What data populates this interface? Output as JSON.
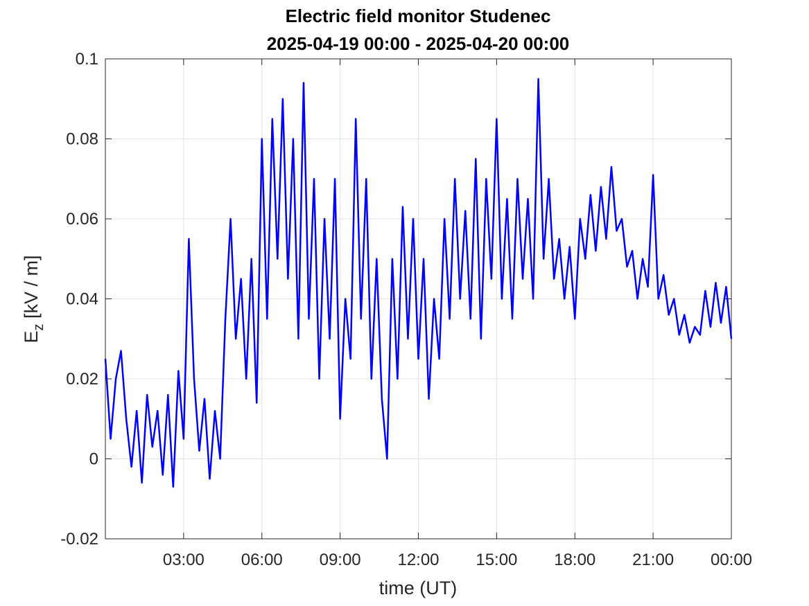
{
  "chart_data": {
    "type": "line",
    "title": "Electric field monitor Studenec",
    "subtitle": "2025-04-19 00:00 - 2025-04-20 00:00",
    "xlabel": "time (UT)",
    "ylabel": {
      "main": "E",
      "subscript": "z",
      "suffix": " [kV / m]"
    },
    "x": [
      0,
      0.2,
      0.4,
      0.6,
      0.8,
      1,
      1.2,
      1.4,
      1.6,
      1.8,
      2,
      2.2,
      2.4,
      2.6,
      2.8,
      3,
      3.2,
      3.4,
      3.6,
      3.8,
      4,
      4.2,
      4.4,
      4.6,
      4.8,
      5,
      5.2,
      5.4,
      5.6,
      5.8,
      6,
      6.2,
      6.4,
      6.6,
      6.8,
      7,
      7.2,
      7.4,
      7.6,
      7.8,
      8,
      8.2,
      8.4,
      8.6,
      8.8,
      9,
      9.2,
      9.4,
      9.6,
      9.8,
      10,
      10.2,
      10.4,
      10.6,
      10.8,
      11,
      11.2,
      11.4,
      11.6,
      11.8,
      12,
      12.2,
      12.4,
      12.6,
      12.8,
      13,
      13.2,
      13.4,
      13.6,
      13.8,
      14,
      14.2,
      14.4,
      14.6,
      14.8,
      15,
      15.2,
      15.4,
      15.6,
      15.8,
      16,
      16.2,
      16.4,
      16.6,
      16.8,
      17,
      17.2,
      17.4,
      17.6,
      17.8,
      18,
      18.2,
      18.4,
      18.6,
      18.8,
      19,
      19.2,
      19.4,
      19.6,
      19.8,
      20,
      20.2,
      20.4,
      20.6,
      20.8,
      21,
      21.2,
      21.4,
      21.6,
      21.8,
      22,
      22.2,
      22.4,
      22.6,
      22.8,
      23,
      23.2,
      23.4,
      23.6,
      23.8,
      24
    ],
    "values": [
      0.025,
      0.005,
      0.02,
      0.027,
      0.01,
      -0.002,
      0.012,
      -0.006,
      0.016,
      0.003,
      0.012,
      -0.004,
      0.016,
      -0.007,
      0.022,
      0.005,
      0.055,
      0.02,
      0.002,
      0.015,
      -0.005,
      0.012,
      0.0,
      0.035,
      0.06,
      0.03,
      0.045,
      0.02,
      0.05,
      0.014,
      0.08,
      0.035,
      0.085,
      0.05,
      0.09,
      0.045,
      0.08,
      0.03,
      0.094,
      0.035,
      0.07,
      0.02,
      0.06,
      0.03,
      0.07,
      0.01,
      0.04,
      0.025,
      0.085,
      0.035,
      0.07,
      0.02,
      0.05,
      0.015,
      0.0,
      0.05,
      0.02,
      0.063,
      0.03,
      0.06,
      0.025,
      0.05,
      0.015,
      0.04,
      0.025,
      0.06,
      0.035,
      0.07,
      0.04,
      0.062,
      0.035,
      0.075,
      0.03,
      0.07,
      0.045,
      0.085,
      0.04,
      0.065,
      0.035,
      0.07,
      0.045,
      0.065,
      0.04,
      0.095,
      0.05,
      0.07,
      0.045,
      0.055,
      0.04,
      0.053,
      0.035,
      0.06,
      0.05,
      0.066,
      0.052,
      0.068,
      0.055,
      0.073,
      0.057,
      0.06,
      0.048,
      0.052,
      0.04,
      0.05,
      0.043,
      0.071,
      0.04,
      0.046,
      0.036,
      0.04,
      0.031,
      0.036,
      0.029,
      0.033,
      0.031,
      0.042,
      0.033,
      0.044,
      0.034,
      0.043,
      0.03
    ],
    "color": "#0000ff",
    "xlim": [
      0,
      24
    ],
    "xticks": [
      {
        "value": 3,
        "label": "03:00"
      },
      {
        "value": 6,
        "label": "06:00"
      },
      {
        "value": 9,
        "label": "09:00"
      },
      {
        "value": 12,
        "label": "12:00"
      },
      {
        "value": 15,
        "label": "15:00"
      },
      {
        "value": 18,
        "label": "18:00"
      },
      {
        "value": 21,
        "label": "21:00"
      },
      {
        "value": 24,
        "label": "00:00"
      }
    ],
    "ylim": [
      -0.02,
      0.1
    ],
    "yticks": [
      -0.02,
      0,
      0.02,
      0.04,
      0.06,
      0.08,
      0.1
    ],
    "grid": true
  }
}
